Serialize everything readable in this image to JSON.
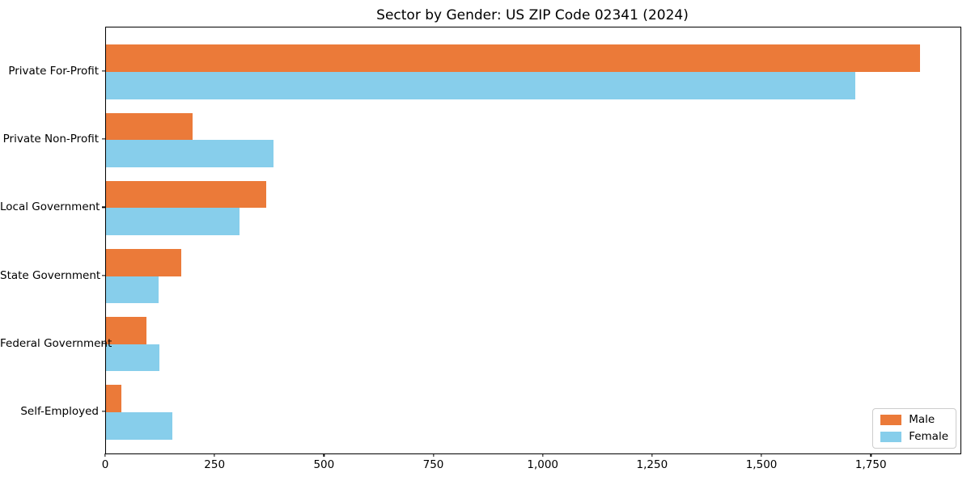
{
  "chart_data": {
    "type": "bar",
    "orientation": "horizontal",
    "title": "Sector by Gender: US ZIP Code 02341 (2024)",
    "categories": [
      "Private For-Profit",
      "Private Non-Profit",
      "Local Government",
      "State Government",
      "Federal Government",
      "Self-Employed"
    ],
    "series": [
      {
        "name": "Male",
        "color": "#EB7A39",
        "values": [
          1860,
          198,
          366,
          172,
          92,
          36
        ]
      },
      {
        "name": "Female",
        "color": "#87CEEB",
        "values": [
          1713,
          383,
          306,
          120,
          122,
          152
        ]
      }
    ],
    "xlabel": "",
    "ylabel": "",
    "xlim": [
      0,
      1953
    ],
    "xticks": [
      0,
      250,
      500,
      750,
      1000,
      1250,
      1500,
      1750
    ],
    "xtick_labels": [
      "0",
      "250",
      "500",
      "750",
      "1,000",
      "1,250",
      "1,500",
      "1,750"
    ],
    "grid": false,
    "legend": {
      "position": "lower right"
    },
    "colors": {
      "spine": "#000000",
      "background": "#ffffff",
      "legend_border": "#cccccc"
    }
  }
}
